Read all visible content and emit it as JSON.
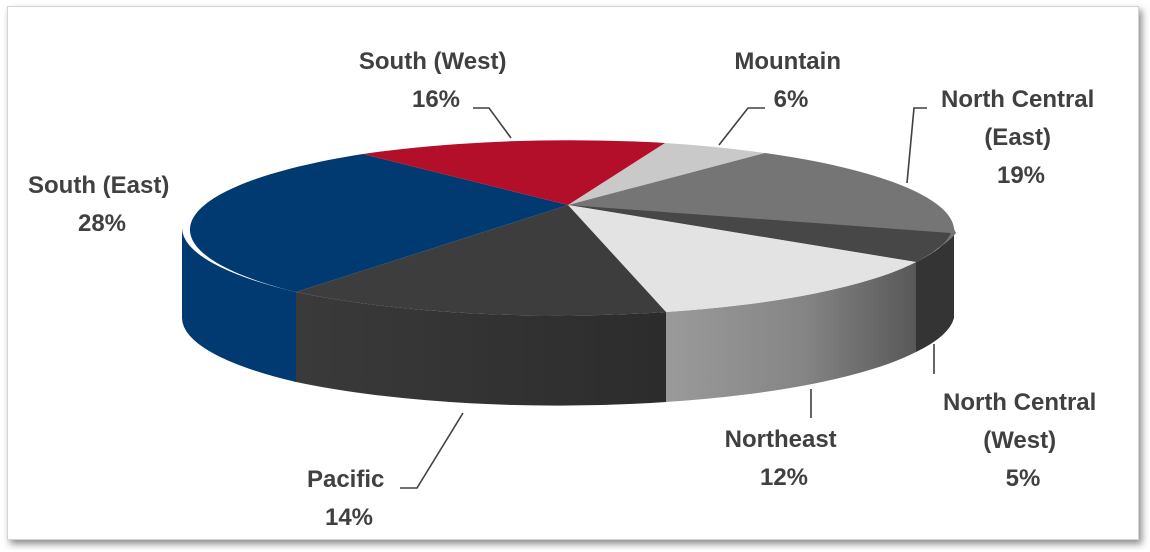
{
  "chart_data": {
    "type": "pie",
    "title": "",
    "three_d": true,
    "slices": [
      {
        "name": "Mountain",
        "value": 6,
        "display": "6%",
        "color": "#c9c9c9",
        "side_color": "#bdbdbd"
      },
      {
        "name": "North Central (East)",
        "value": 19,
        "display": "19%",
        "color": "#757575",
        "side_color": "#5e5e5e"
      },
      {
        "name": "North Central (West)",
        "value": 5,
        "display": "5%",
        "color": "#474747",
        "side_color": "#343434"
      },
      {
        "name": "Northeast",
        "value": 12,
        "display": "12%",
        "color": "#e3e3e3",
        "side_color": "#999999"
      },
      {
        "name": "Pacific",
        "value": 14,
        "display": "14%",
        "color": "#3d3d3d",
        "side_color": "#353535"
      },
      {
        "name": "South (East)",
        "value": 28,
        "display": "28%",
        "color": "#003a70",
        "side_color": "#003a70"
      },
      {
        "name": "South (West)",
        "value": 16,
        "display": "16%",
        "color": "#b40f2a",
        "side_color": "#8e0c21"
      }
    ],
    "labels": [
      {
        "lines": [
          "South (West)",
          "16%"
        ]
      },
      {
        "lines": [
          "Mountain",
          "6%"
        ]
      },
      {
        "lines": [
          "North Central",
          "(East)",
          "19%"
        ]
      },
      {
        "lines": [
          "South (East)",
          "28%"
        ]
      },
      {
        "lines": [
          "Pacific",
          "14%"
        ]
      },
      {
        "lines": [
          "Northeast",
          "12%"
        ]
      },
      {
        "lines": [
          "North Central",
          "(West)",
          "5%"
        ]
      }
    ],
    "legend": "none",
    "data_labels": "outside-with-leader-lines"
  }
}
